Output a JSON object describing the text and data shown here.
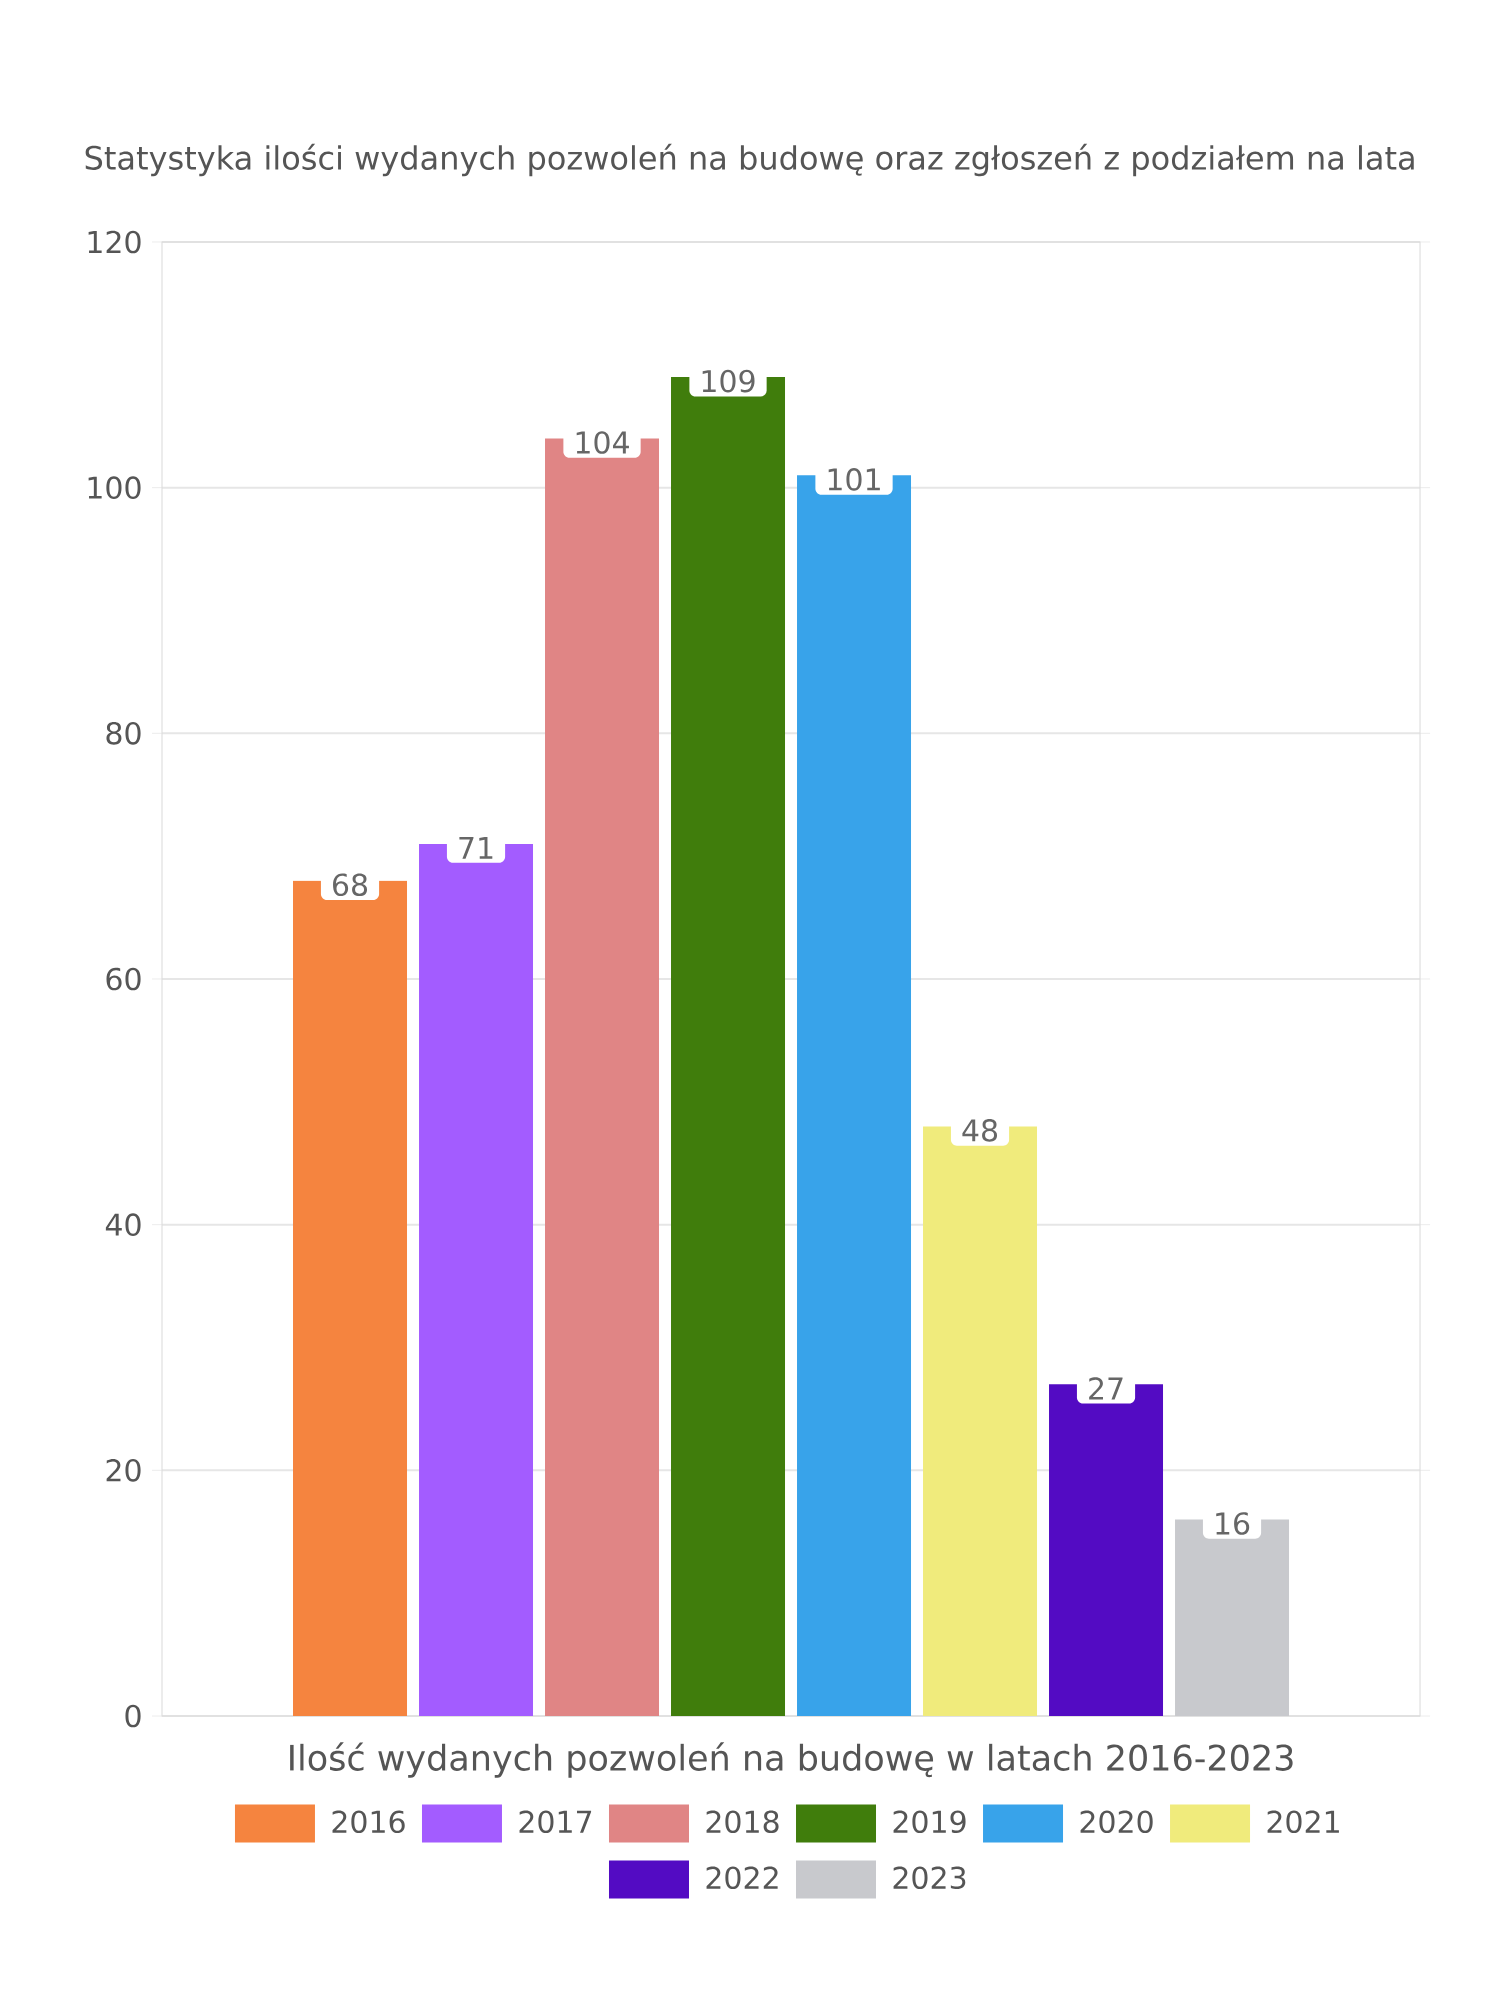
{
  "chart_data": {
    "type": "bar",
    "title": "Statystyka ilości wydanych pozwoleń na budowę oraz zgłoszeń z podziałem na lata",
    "xlabel": "Ilość wydanych pozwoleń na budowę w latach 2016-2023",
    "categories": [
      null
    ],
    "series": [
      {
        "name": "2016",
        "color": "#f5843f",
        "values": [
          68
        ]
      },
      {
        "name": "2017",
        "color": "#a35cff",
        "values": [
          71
        ]
      },
      {
        "name": "2018",
        "color": "#e08585",
        "values": [
          104
        ]
      },
      {
        "name": "2019",
        "color": "#407d0c",
        "values": [
          109
        ]
      },
      {
        "name": "2020",
        "color": "#38a3ea",
        "values": [
          101
        ]
      },
      {
        "name": "2021",
        "color": "#f0eb7c",
        "values": [
          48
        ]
      },
      {
        "name": "2022",
        "color": "#530bc3",
        "values": [
          27
        ]
      },
      {
        "name": "2023",
        "color": "#c8c9cd",
        "values": [
          16
        ]
      }
    ],
    "ylim": [
      0,
      120
    ],
    "yticks": [
      0,
      20,
      40,
      60,
      80,
      100,
      120
    ],
    "grid": "y",
    "legend": "bottom",
    "data_labels": true
  }
}
